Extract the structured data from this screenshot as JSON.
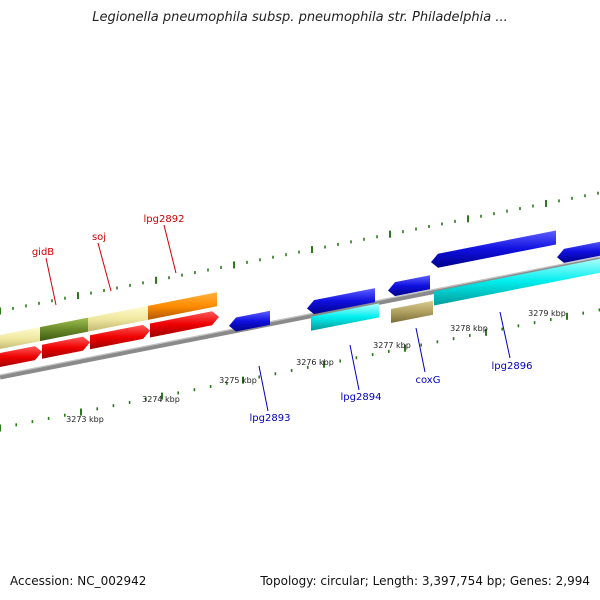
{
  "title": "Legionella pneumophila subsp. pneumophila str. Philadelphia ...",
  "footer": {
    "accession": "Accession: NC_002942",
    "summary": "Topology: circular; Length: 3,397,754 bp; Genes: 2,994"
  },
  "colors": {
    "forward_label": "#cc0000",
    "reverse_label": "#0000bb",
    "backbone": "#8a8a8a",
    "tick": "#2a7a1a"
  },
  "gene_labels": [
    {
      "name": "gidB",
      "strand": "forward"
    },
    {
      "name": "soj",
      "strand": "forward"
    },
    {
      "name": "lpg2892",
      "strand": "forward"
    },
    {
      "name": "lpg2893",
      "strand": "reverse"
    },
    {
      "name": "lpg2894",
      "strand": "reverse"
    },
    {
      "name": "coxG",
      "strand": "reverse"
    },
    {
      "name": "lpg2896",
      "strand": "reverse"
    }
  ],
  "kbp_labels": [
    "3273 kbp",
    "3274 kbp",
    "3275 kbp",
    "3276 kbp",
    "3277 kbp",
    "3278 kbp",
    "3279 kbp"
  ]
}
